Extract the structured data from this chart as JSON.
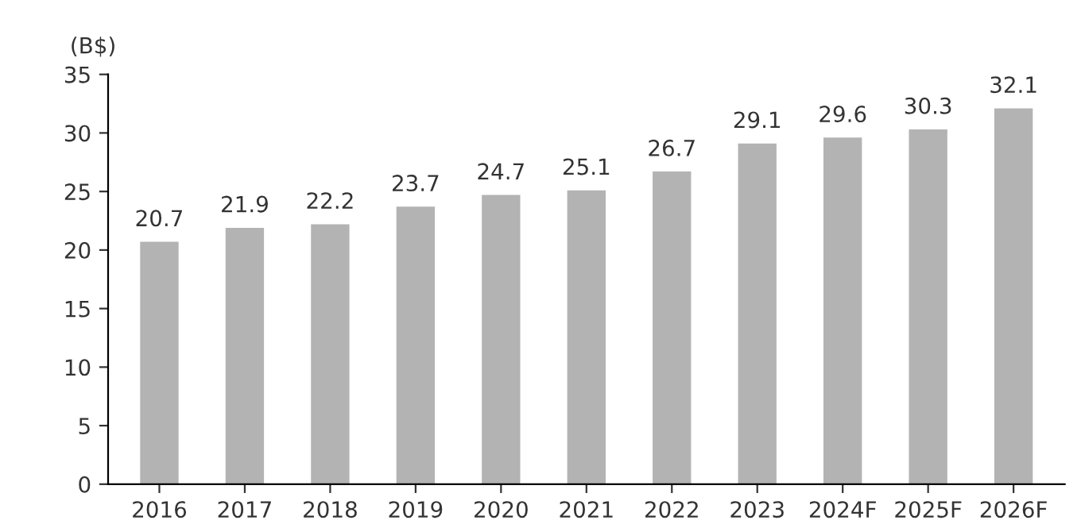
{
  "chart_data": {
    "type": "bar",
    "ylabel": "(B$)",
    "categories": [
      "2016",
      "2017",
      "2018",
      "2019",
      "2020",
      "2021",
      "2022",
      "2023",
      "2024F",
      "2025F",
      "2026F"
    ],
    "values": [
      20.7,
      21.9,
      22.2,
      23.7,
      24.7,
      25.1,
      26.7,
      29.1,
      29.6,
      30.3,
      32.1
    ],
    "color": "#b3b3b3",
    "ylim": [
      0,
      35
    ],
    "yticks": [
      0,
      5,
      10,
      15,
      20,
      25,
      30,
      35
    ],
    "data_labels": true,
    "grid": false
  }
}
